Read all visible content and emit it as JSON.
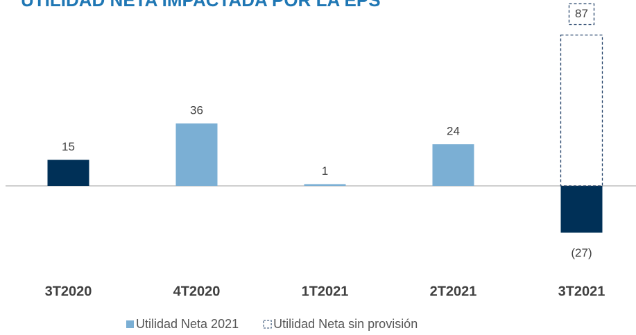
{
  "chart_data": {
    "type": "bar",
    "title": "UTILIDAD NETA IMPACTADA POR LA EPS",
    "categories": [
      "3T2020",
      "4T2020",
      "1T2021",
      "2T2021",
      "3T2021"
    ],
    "series": [
      {
        "name": "Utilidad Neta 2021",
        "color": "#7bafd4",
        "colors": [
          "#003057",
          "#7bafd4",
          "#7bafd4",
          "#7bafd4",
          "#003057"
        ],
        "values": [
          15,
          36,
          1,
          24,
          -27
        ],
        "value_labels": [
          "15",
          "36",
          "1",
          "24",
          "(27)"
        ]
      },
      {
        "name": "Utilidad Neta sin provisión",
        "color": "#1f3f66",
        "dashed": true,
        "values": [
          null,
          null,
          null,
          null,
          87
        ]
      }
    ],
    "ylim": [
      -40,
      100
    ]
  }
}
